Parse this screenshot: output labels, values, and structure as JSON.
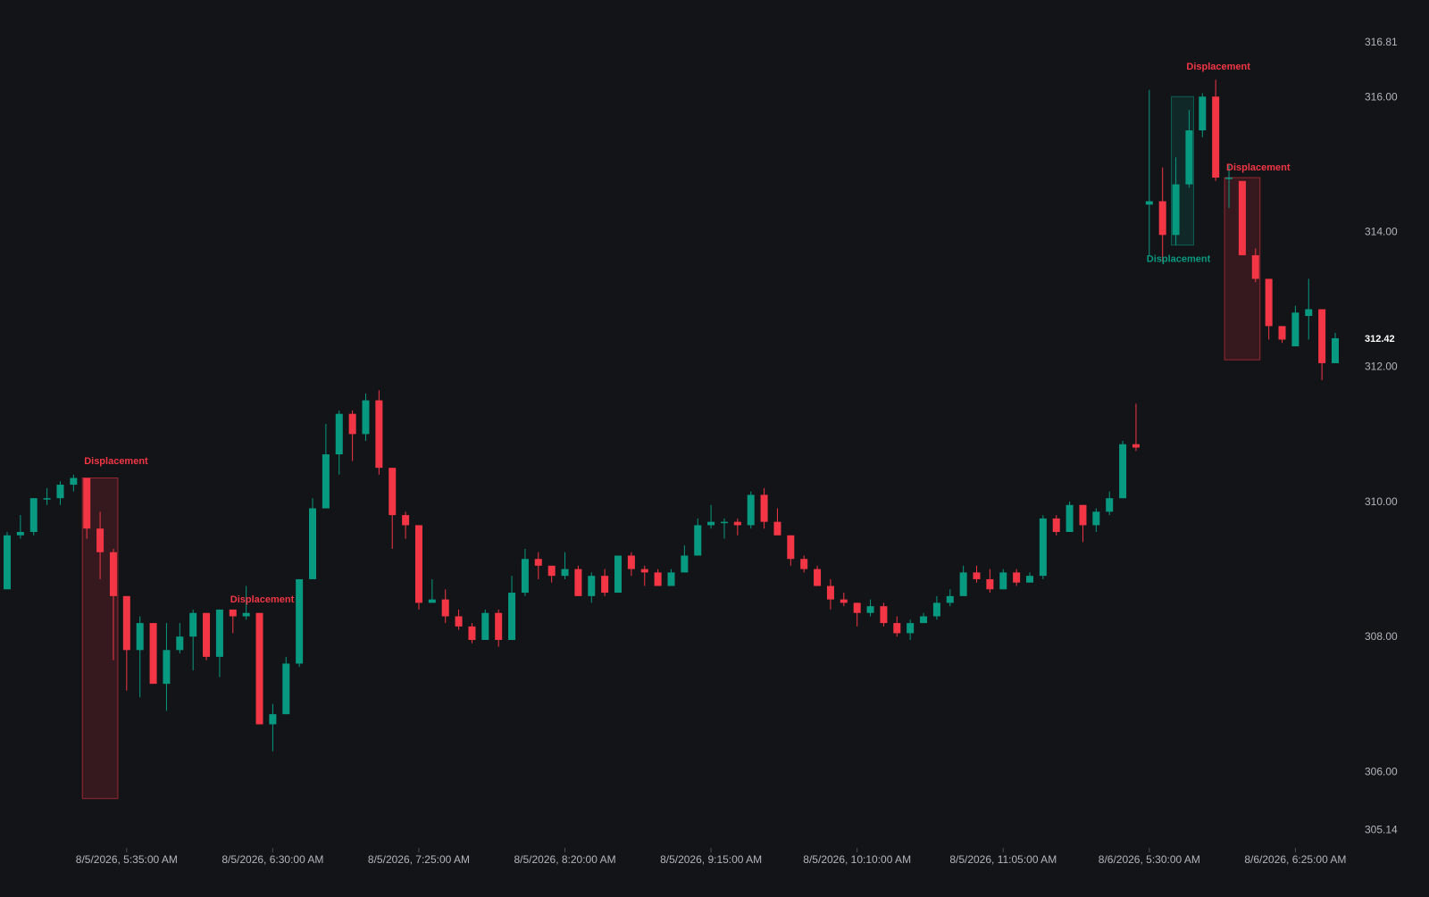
{
  "chart_data": {
    "type": "candlestick",
    "title": "",
    "xlabel": "",
    "ylabel": "",
    "ylim": [
      305.14,
      316.81
    ],
    "y_ticks": [
      {
        "value": 316.81,
        "label": "316.81"
      },
      {
        "value": 316.0,
        "label": "316.00"
      },
      {
        "value": 314.0,
        "label": "314.00"
      },
      {
        "value": 312.0,
        "label": "312.00"
      },
      {
        "value": 310.0,
        "label": "310.00"
      },
      {
        "value": 308.0,
        "label": "308.00"
      },
      {
        "value": 306.0,
        "label": "306.00"
      },
      {
        "value": 305.14,
        "label": "305.14"
      }
    ],
    "last_price": {
      "value": 312.42,
      "label": "312.42"
    },
    "x_ticks": [
      {
        "index": 9,
        "label": "8/5/2026, 5:35:00 AM"
      },
      {
        "index": 20,
        "label": "8/5/2026, 6:30:00 AM"
      },
      {
        "index": 31,
        "label": "8/5/2026, 7:25:00 AM"
      },
      {
        "index": 42,
        "label": "8/5/2026, 8:20:00 AM"
      },
      {
        "index": 53,
        "label": "8/5/2026, 9:15:00 AM"
      },
      {
        "index": 64,
        "label": "8/5/2026, 10:10:00 AM"
      },
      {
        "index": 75,
        "label": "8/5/2026, 11:05:00 AM"
      },
      {
        "index": 86,
        "label": "8/6/2026, 5:30:00 AM"
      },
      {
        "index": 97,
        "label": "8/6/2026, 6:25:00 AM"
      }
    ],
    "colors": {
      "background": "#131417",
      "up": "#089981",
      "down": "#f23645",
      "axis_text": "#b2b5be",
      "last_price_text": "#ffffff"
    },
    "candles": [
      {
        "o": 308.7,
        "h": 309.55,
        "l": 308.7,
        "c": 309.5
      },
      {
        "o": 309.5,
        "h": 309.8,
        "l": 309.45,
        "c": 309.55
      },
      {
        "o": 309.55,
        "h": 310.05,
        "l": 309.5,
        "c": 310.05
      },
      {
        "o": 310.05,
        "h": 310.2,
        "l": 309.95,
        "c": 310.05
      },
      {
        "o": 310.05,
        "h": 310.3,
        "l": 309.95,
        "c": 310.25
      },
      {
        "o": 310.25,
        "h": 310.4,
        "l": 310.15,
        "c": 310.35
      },
      {
        "o": 310.35,
        "h": 310.35,
        "l": 309.45,
        "c": 309.6
      },
      {
        "o": 309.6,
        "h": 309.85,
        "l": 308.85,
        "c": 309.25
      },
      {
        "o": 309.25,
        "h": 309.3,
        "l": 307.65,
        "c": 308.6
      },
      {
        "o": 308.6,
        "h": 308.6,
        "l": 307.2,
        "c": 307.8
      },
      {
        "o": 307.8,
        "h": 308.3,
        "l": 307.1,
        "c": 308.2
      },
      {
        "o": 308.2,
        "h": 308.2,
        "l": 307.3,
        "c": 307.3
      },
      {
        "o": 307.3,
        "h": 308.2,
        "l": 306.9,
        "c": 307.8
      },
      {
        "o": 307.8,
        "h": 308.2,
        "l": 307.75,
        "c": 308.0
      },
      {
        "o": 308.0,
        "h": 308.4,
        "l": 307.5,
        "c": 308.35
      },
      {
        "o": 308.35,
        "h": 308.35,
        "l": 307.65,
        "c": 307.7
      },
      {
        "o": 307.7,
        "h": 308.4,
        "l": 307.4,
        "c": 308.4
      },
      {
        "o": 308.4,
        "h": 308.4,
        "l": 308.05,
        "c": 308.3
      },
      {
        "o": 308.3,
        "h": 308.75,
        "l": 308.25,
        "c": 308.35
      },
      {
        "o": 308.35,
        "h": 308.35,
        "l": 306.7,
        "c": 306.7
      },
      {
        "o": 306.7,
        "h": 307.0,
        "l": 306.3,
        "c": 306.85
      },
      {
        "o": 306.85,
        "h": 307.7,
        "l": 306.85,
        "c": 307.6
      },
      {
        "o": 307.6,
        "h": 308.85,
        "l": 307.55,
        "c": 308.85
      },
      {
        "o": 308.85,
        "h": 310.05,
        "l": 308.85,
        "c": 309.9
      },
      {
        "o": 309.9,
        "h": 311.15,
        "l": 309.9,
        "c": 310.7
      },
      {
        "o": 310.7,
        "h": 311.35,
        "l": 310.4,
        "c": 311.3
      },
      {
        "o": 311.3,
        "h": 311.35,
        "l": 310.6,
        "c": 311.0
      },
      {
        "o": 311.0,
        "h": 311.6,
        "l": 310.9,
        "c": 311.5
      },
      {
        "o": 311.5,
        "h": 311.65,
        "l": 310.4,
        "c": 310.5
      },
      {
        "o": 310.5,
        "h": 310.5,
        "l": 309.3,
        "c": 309.8
      },
      {
        "o": 309.8,
        "h": 309.85,
        "l": 309.45,
        "c": 309.65
      },
      {
        "o": 309.65,
        "h": 309.65,
        "l": 308.4,
        "c": 308.5
      },
      {
        "o": 308.5,
        "h": 308.85,
        "l": 308.5,
        "c": 308.55
      },
      {
        "o": 308.55,
        "h": 308.7,
        "l": 308.2,
        "c": 308.3
      },
      {
        "o": 308.3,
        "h": 308.4,
        "l": 308.1,
        "c": 308.15
      },
      {
        "o": 308.15,
        "h": 308.2,
        "l": 307.9,
        "c": 307.95
      },
      {
        "o": 307.95,
        "h": 308.4,
        "l": 307.95,
        "c": 308.35
      },
      {
        "o": 308.35,
        "h": 308.4,
        "l": 307.85,
        "c": 307.95
      },
      {
        "o": 307.95,
        "h": 308.9,
        "l": 307.95,
        "c": 308.65
      },
      {
        "o": 308.65,
        "h": 309.3,
        "l": 308.6,
        "c": 309.15
      },
      {
        "o": 309.15,
        "h": 309.25,
        "l": 308.85,
        "c": 309.05
      },
      {
        "o": 309.05,
        "h": 309.05,
        "l": 308.8,
        "c": 308.9
      },
      {
        "o": 308.9,
        "h": 309.25,
        "l": 308.85,
        "c": 309.0
      },
      {
        "o": 309.0,
        "h": 309.05,
        "l": 308.6,
        "c": 308.6
      },
      {
        "o": 308.6,
        "h": 308.95,
        "l": 308.5,
        "c": 308.9
      },
      {
        "o": 308.9,
        "h": 309.0,
        "l": 308.6,
        "c": 308.65
      },
      {
        "o": 308.65,
        "h": 309.2,
        "l": 308.65,
        "c": 309.2
      },
      {
        "o": 309.2,
        "h": 309.25,
        "l": 308.9,
        "c": 309.0
      },
      {
        "o": 309.0,
        "h": 309.05,
        "l": 308.75,
        "c": 308.95
      },
      {
        "o": 308.95,
        "h": 309.0,
        "l": 308.75,
        "c": 308.75
      },
      {
        "o": 308.75,
        "h": 309.0,
        "l": 308.75,
        "c": 308.95
      },
      {
        "o": 308.95,
        "h": 309.35,
        "l": 308.95,
        "c": 309.2
      },
      {
        "o": 309.2,
        "h": 309.75,
        "l": 309.2,
        "c": 309.65
      },
      {
        "o": 309.65,
        "h": 309.95,
        "l": 309.6,
        "c": 309.7
      },
      {
        "o": 309.7,
        "h": 309.75,
        "l": 309.45,
        "c": 309.7
      },
      {
        "o": 309.7,
        "h": 309.75,
        "l": 309.5,
        "c": 309.65
      },
      {
        "o": 309.65,
        "h": 310.15,
        "l": 309.6,
        "c": 310.1
      },
      {
        "o": 310.1,
        "h": 310.2,
        "l": 309.6,
        "c": 309.7
      },
      {
        "o": 309.7,
        "h": 309.9,
        "l": 309.5,
        "c": 309.5
      },
      {
        "o": 309.5,
        "h": 309.5,
        "l": 309.05,
        "c": 309.15
      },
      {
        "o": 309.15,
        "h": 309.2,
        "l": 308.95,
        "c": 309.0
      },
      {
        "o": 309.0,
        "h": 309.05,
        "l": 308.75,
        "c": 308.75
      },
      {
        "o": 308.75,
        "h": 308.85,
        "l": 308.4,
        "c": 308.55
      },
      {
        "o": 308.55,
        "h": 308.65,
        "l": 308.45,
        "c": 308.5
      },
      {
        "o": 308.5,
        "h": 308.5,
        "l": 308.15,
        "c": 308.35
      },
      {
        "o": 308.35,
        "h": 308.55,
        "l": 308.3,
        "c": 308.45
      },
      {
        "o": 308.45,
        "h": 308.5,
        "l": 308.15,
        "c": 308.2
      },
      {
        "o": 308.2,
        "h": 308.3,
        "l": 308.0,
        "c": 308.05
      },
      {
        "o": 308.05,
        "h": 308.25,
        "l": 307.95,
        "c": 308.2
      },
      {
        "o": 308.2,
        "h": 308.35,
        "l": 308.2,
        "c": 308.3
      },
      {
        "o": 308.3,
        "h": 308.6,
        "l": 308.25,
        "c": 308.5
      },
      {
        "o": 308.5,
        "h": 308.7,
        "l": 308.45,
        "c": 308.6
      },
      {
        "o": 308.6,
        "h": 309.05,
        "l": 308.6,
        "c": 308.95
      },
      {
        "o": 308.95,
        "h": 309.05,
        "l": 308.8,
        "c": 308.85
      },
      {
        "o": 308.85,
        "h": 309.0,
        "l": 308.65,
        "c": 308.7
      },
      {
        "o": 308.7,
        "h": 309.0,
        "l": 308.7,
        "c": 308.95
      },
      {
        "o": 308.95,
        "h": 309.0,
        "l": 308.75,
        "c": 308.8
      },
      {
        "o": 308.8,
        "h": 308.95,
        "l": 308.8,
        "c": 308.9
      },
      {
        "o": 308.9,
        "h": 309.8,
        "l": 308.85,
        "c": 309.75
      },
      {
        "o": 309.75,
        "h": 309.8,
        "l": 309.5,
        "c": 309.55
      },
      {
        "o": 309.55,
        "h": 310.0,
        "l": 309.55,
        "c": 309.95
      },
      {
        "o": 309.95,
        "h": 309.95,
        "l": 309.4,
        "c": 309.65
      },
      {
        "o": 309.65,
        "h": 309.9,
        "l": 309.55,
        "c": 309.85
      },
      {
        "o": 309.85,
        "h": 310.15,
        "l": 309.8,
        "c": 310.05
      },
      {
        "o": 310.05,
        "h": 310.9,
        "l": 310.05,
        "c": 310.85
      },
      {
        "o": 310.85,
        "h": 311.45,
        "l": 310.75,
        "c": 310.8
      },
      {
        "o": 314.4,
        "h": 316.1,
        "l": 313.65,
        "c": 314.45
      },
      {
        "o": 314.45,
        "h": 314.95,
        "l": 313.55,
        "c": 313.95
      },
      {
        "o": 313.95,
        "h": 315.1,
        "l": 313.8,
        "c": 314.7
      },
      {
        "o": 314.7,
        "h": 315.8,
        "l": 314.65,
        "c": 315.5
      },
      {
        "o": 315.5,
        "h": 316.05,
        "l": 315.4,
        "c": 316.0
      },
      {
        "o": 316.0,
        "h": 316.25,
        "l": 314.75,
        "c": 314.8
      },
      {
        "o": 314.8,
        "h": 315.0,
        "l": 314.35,
        "c": 314.8
      },
      {
        "o": 314.75,
        "h": 314.75,
        "l": 313.65,
        "c": 313.65
      },
      {
        "o": 313.65,
        "h": 313.75,
        "l": 313.25,
        "c": 313.3
      },
      {
        "o": 313.3,
        "h": 313.3,
        "l": 312.4,
        "c": 312.6
      },
      {
        "o": 312.6,
        "h": 312.6,
        "l": 312.35,
        "c": 312.4
      },
      {
        "o": 312.3,
        "h": 312.9,
        "l": 312.3,
        "c": 312.8
      },
      {
        "o": 312.75,
        "h": 313.3,
        "l": 312.4,
        "c": 312.85
      },
      {
        "o": 312.85,
        "h": 312.85,
        "l": 311.8,
        "c": 312.05
      },
      {
        "o": 312.05,
        "h": 312.5,
        "l": 312.05,
        "c": 312.42
      }
    ],
    "zones": [
      {
        "start_index": 6,
        "end_index": 8,
        "top": 310.35,
        "bottom": 305.6,
        "color": "#f23645"
      },
      {
        "start_index": 92,
        "end_index": 94,
        "top": 314.8,
        "bottom": 312.1,
        "color": "#f23645"
      },
      {
        "start_index": 88,
        "end_index": 89,
        "top": 316.0,
        "bottom": 313.8,
        "color": "#089981"
      }
    ],
    "annotations": [
      {
        "index": 8,
        "value": 310.5,
        "text": "Displacement",
        "color": "#f23645"
      },
      {
        "index": 19,
        "value": 308.45,
        "text": "Displacement",
        "color": "#f23645"
      },
      {
        "index": 91,
        "value": 316.35,
        "text": "Displacement",
        "color": "#f23645"
      },
      {
        "index": 94,
        "value": 314.85,
        "text": "Displacement",
        "color": "#f23645"
      },
      {
        "index": 88,
        "value": 313.5,
        "text": "Displacement",
        "color": "#089981"
      }
    ]
  }
}
